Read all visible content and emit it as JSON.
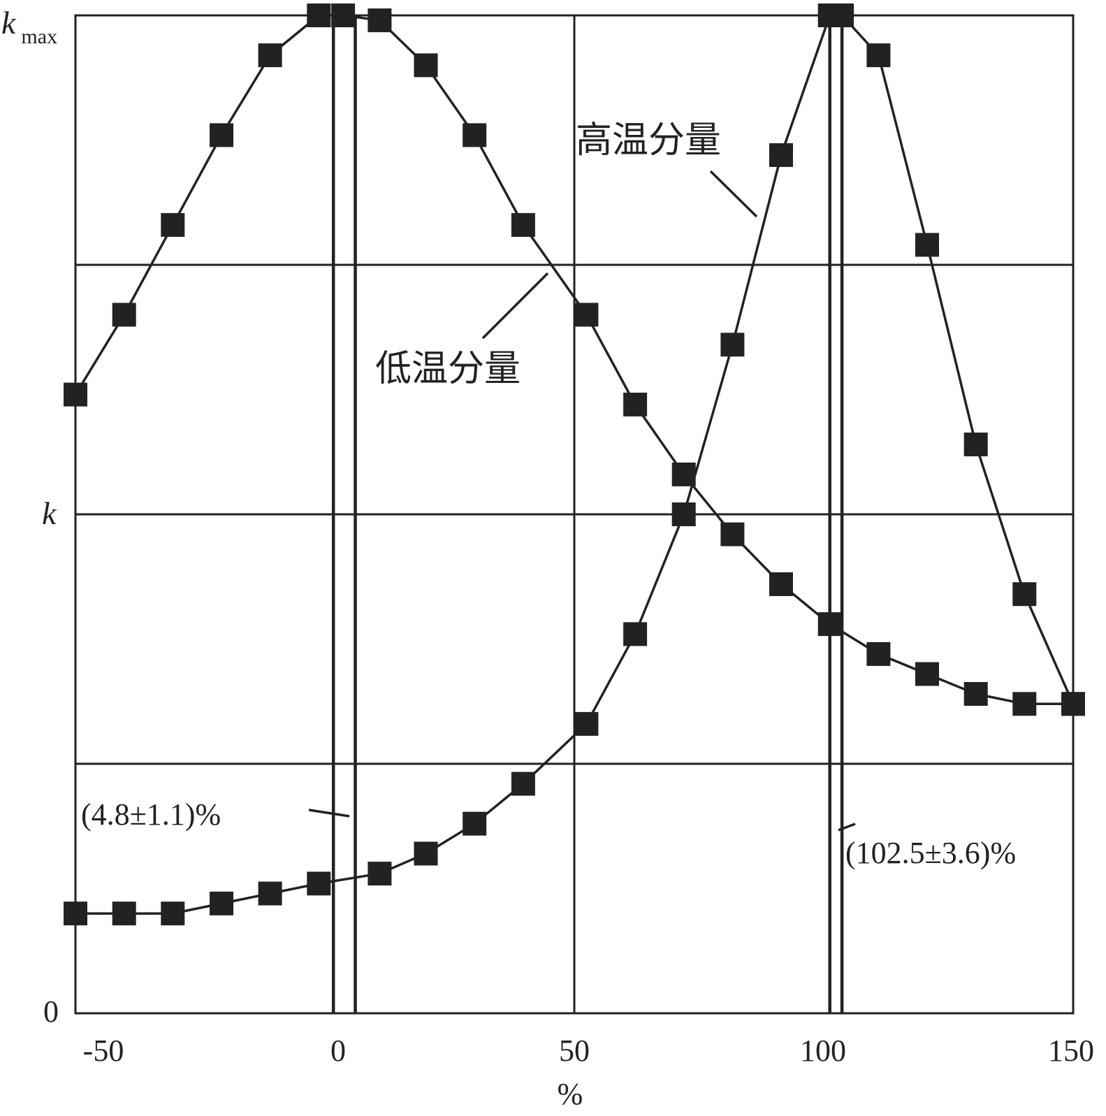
{
  "chart_data": {
    "type": "line",
    "xlabel": "%",
    "x_ticks": [
      "-50",
      "0",
      "50",
      "100",
      "150"
    ],
    "xlim": [
      -55,
      150
    ],
    "ylim": [
      0,
      1
    ],
    "y_labels": {
      "top_main": "k",
      "top_sub": "max",
      "mid": "k",
      "zero": "0"
    },
    "grid": true,
    "series": [
      {
        "name": "低温分量",
        "x": [
          -55,
          -45,
          -35,
          -25,
          -15,
          -5,
          0,
          7.5,
          17,
          27,
          37,
          50,
          60,
          70,
          80,
          90,
          100,
          110,
          120,
          130,
          140,
          150
        ],
        "y": [
          0.62,
          0.7,
          0.79,
          0.88,
          0.96,
          1.0,
          1.0,
          0.995,
          0.95,
          0.88,
          0.79,
          0.7,
          0.61,
          0.54,
          0.48,
          0.43,
          0.39,
          0.36,
          0.34,
          0.32,
          0.31,
          0.31
        ]
      },
      {
        "name": "高温分量",
        "x": [
          -55,
          -45,
          -35,
          -25,
          -15,
          -5,
          7.5,
          17,
          27,
          37,
          50,
          60,
          70,
          80,
          90,
          100,
          102.5,
          110,
          120,
          130,
          140,
          150
        ],
        "y": [
          0.1,
          0.1,
          0.1,
          0.11,
          0.12,
          0.13,
          0.14,
          0.16,
          0.19,
          0.23,
          0.29,
          0.38,
          0.5,
          0.67,
          0.86,
          1.0,
          1.0,
          0.96,
          0.77,
          0.57,
          0.42,
          0.31
        ]
      }
    ],
    "reference_lines": [
      {
        "x": -2,
        "label": ""
      },
      {
        "x": 2.5,
        "label": "(4.8±1.1)%"
      },
      {
        "x": 100,
        "label": ""
      },
      {
        "x": 102.5,
        "label": "(102.5±3.6)%"
      }
    ]
  }
}
